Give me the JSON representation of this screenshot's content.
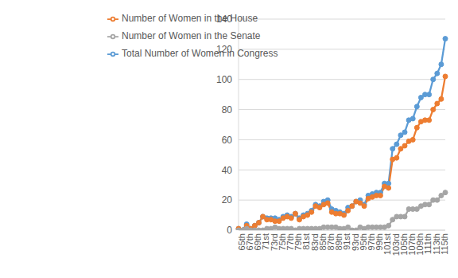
{
  "chart_data": {
    "type": "line",
    "categories": [
      "65th",
      null,
      "67th",
      null,
      "69th",
      null,
      "71st",
      null,
      "73rd",
      null,
      "75th",
      null,
      "77th",
      null,
      "79th",
      null,
      "81st",
      null,
      "83rd",
      null,
      "85th",
      null,
      "87th",
      null,
      "89th",
      null,
      "91st",
      null,
      "93rd",
      null,
      "95th",
      null,
      "97th",
      null,
      "99th",
      null,
      "101st",
      null,
      "103rd",
      null,
      "105th",
      null,
      "107th",
      null,
      "109th",
      null,
      "111th",
      null,
      "113th",
      null,
      "115th",
      null
    ],
    "series": [
      {
        "name": "Total Number of Women in Congress",
        "color": "#5B9BD5",
        "values": [
          1,
          0,
          4,
          1,
          3,
          5,
          9,
          8,
          8,
          8,
          7,
          9,
          10,
          9,
          11,
          8,
          10,
          11,
          13,
          17,
          16,
          19,
          20,
          14,
          13,
          12,
          11,
          15,
          16,
          19,
          20,
          17,
          23,
          24,
          25,
          25,
          31,
          31,
          54,
          57,
          63,
          65,
          73,
          74,
          82,
          88,
          90,
          90,
          100,
          104,
          110,
          127
        ]
      },
      {
        "name": "Number of Women in the House",
        "color": "#ED7D31",
        "values": [
          1,
          0,
          3,
          1,
          3,
          5,
          9,
          7,
          7,
          6,
          6,
          8,
          9,
          8,
          11,
          7,
          9,
          10,
          12,
          16,
          15,
          17,
          18,
          12,
          11,
          11,
          10,
          13,
          16,
          19,
          18,
          16,
          21,
          22,
          23,
          23,
          29,
          28,
          47,
          48,
          54,
          56,
          59,
          60,
          68,
          72,
          73,
          73,
          80,
          84,
          87,
          102
        ]
      },
      {
        "name": "Number of Women in the Senate",
        "color": "#A5A5A5",
        "values": [
          0,
          0,
          1,
          0,
          0,
          0,
          0,
          1,
          1,
          2,
          1,
          1,
          1,
          1,
          0,
          1,
          1,
          1,
          1,
          1,
          1,
          2,
          2,
          2,
          2,
          1,
          1,
          2,
          0,
          0,
          2,
          1,
          2,
          2,
          2,
          2,
          2,
          3,
          7,
          9,
          9,
          9,
          14,
          14,
          14,
          16,
          17,
          17,
          20,
          20,
          23,
          25
        ]
      }
    ],
    "ylim": [
      0,
      140
    ],
    "yticks": [
      0,
      20,
      40,
      60,
      80,
      100,
      120,
      140
    ],
    "grid": true,
    "legend": "upper left",
    "marker": "circle"
  }
}
